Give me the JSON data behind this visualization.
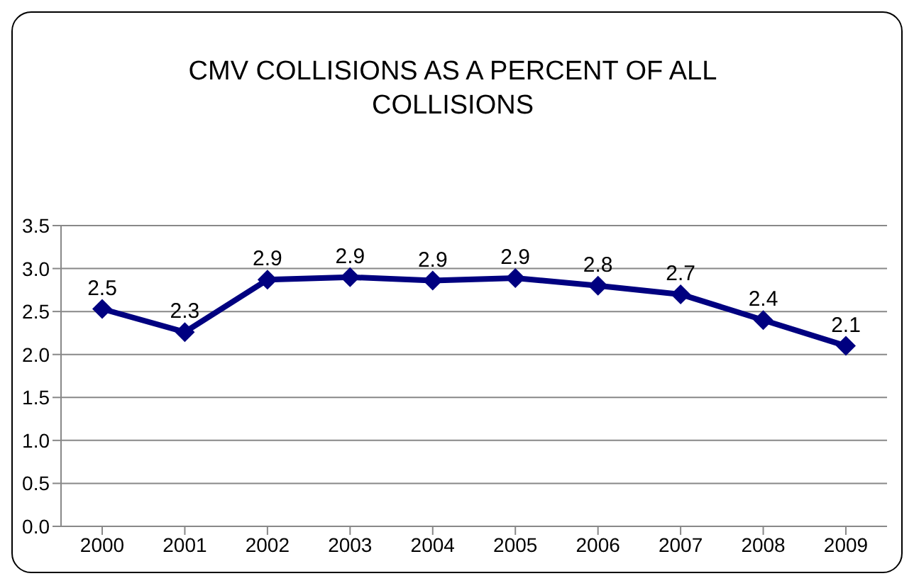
{
  "chart_data": {
    "type": "line",
    "title": "CMV COLLISIONS AS A PERCENT OF ALL COLLISIONS",
    "categories": [
      "2000",
      "2001",
      "2002",
      "2003",
      "2004",
      "2005",
      "2006",
      "2007",
      "2008",
      "2009"
    ],
    "values": [
      2.53,
      2.26,
      2.87,
      2.9,
      2.86,
      2.89,
      2.8,
      2.7,
      2.4,
      2.1
    ],
    "value_labels": [
      "2.5",
      "2.3",
      "2.9",
      "2.9",
      "2.9",
      "2.9",
      "2.8",
      "2.7",
      "2.4",
      "2.1"
    ],
    "color": "#000080",
    "ylim": [
      0,
      3.5
    ],
    "yticks": [
      {
        "value": 0,
        "label": "0.0"
      },
      {
        "value": 0.5,
        "label": "0.5"
      },
      {
        "value": 1,
        "label": "1.0"
      },
      {
        "value": 1.5,
        "label": "1.5"
      },
      {
        "value": 2,
        "label": "2.0"
      },
      {
        "value": 2.5,
        "label": "2.5"
      },
      {
        "value": 3,
        "label": "3.0"
      },
      {
        "value": 3.5,
        "label": "3.5"
      }
    ],
    "grid": "y",
    "marker": "diamond",
    "line_style": "solid"
  }
}
